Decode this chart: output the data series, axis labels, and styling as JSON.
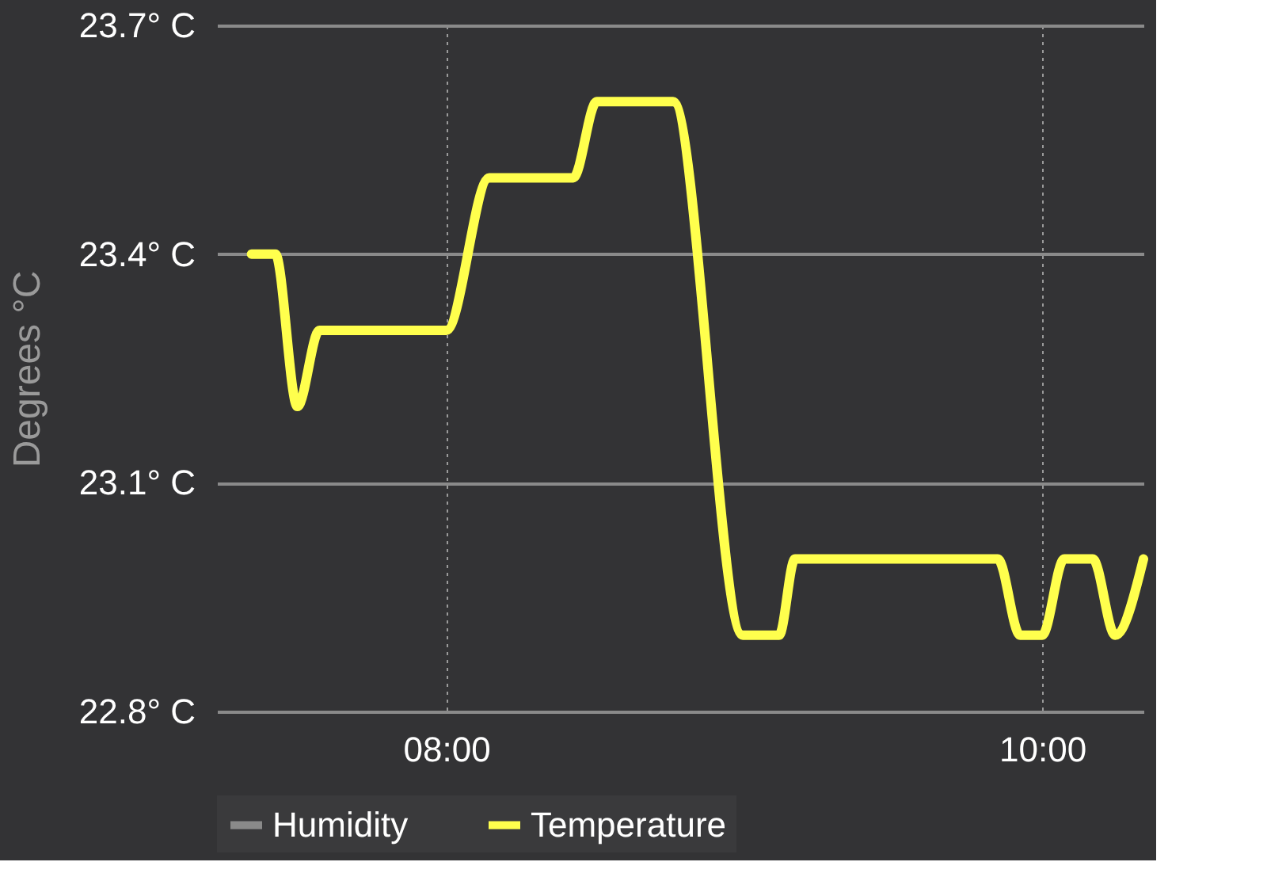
{
  "chart_data": {
    "type": "line",
    "ylabel": "Degrees °C",
    "x": [
      7.346,
      7.426,
      7.5,
      7.574,
      8.0,
      8.144,
      8.426,
      8.505,
      8.761,
      8.995,
      9.117,
      9.17,
      9.851,
      9.926,
      10.0,
      10.074,
      10.17,
      10.245,
      10.34
    ],
    "series": [
      {
        "name": "Humidity",
        "color": "#8a8a8a",
        "values": [
          null,
          null,
          null,
          null,
          null,
          null,
          null,
          null,
          null,
          null,
          null,
          null,
          null,
          null,
          null,
          null,
          null,
          null,
          null
        ]
      },
      {
        "name": "Temperature",
        "color": "#ffff4d",
        "values": [
          23.4,
          23.4,
          23.2,
          23.3,
          23.3,
          23.5,
          23.5,
          23.6,
          23.6,
          22.9,
          22.9,
          23.0,
          23.0,
          22.9,
          22.9,
          23.0,
          23.0,
          22.9,
          23.0
        ]
      }
    ],
    "xlim": [
      7.23,
      10.34
    ],
    "xticks": [
      {
        "value": 8,
        "label": "08:00"
      },
      {
        "value": 10,
        "label": "10:00"
      }
    ],
    "ylim": [
      22.8,
      23.7
    ],
    "yticks": [
      {
        "value": 22.8,
        "label": "22.8° C"
      },
      {
        "value": 23.1,
        "label": "23.1° C"
      },
      {
        "value": 23.4,
        "label": "23.4° C"
      },
      {
        "value": 23.7,
        "label": "23.7° C"
      }
    ],
    "grid": true,
    "legend": "bottom",
    "marker": "none",
    "line_style": "solid"
  }
}
